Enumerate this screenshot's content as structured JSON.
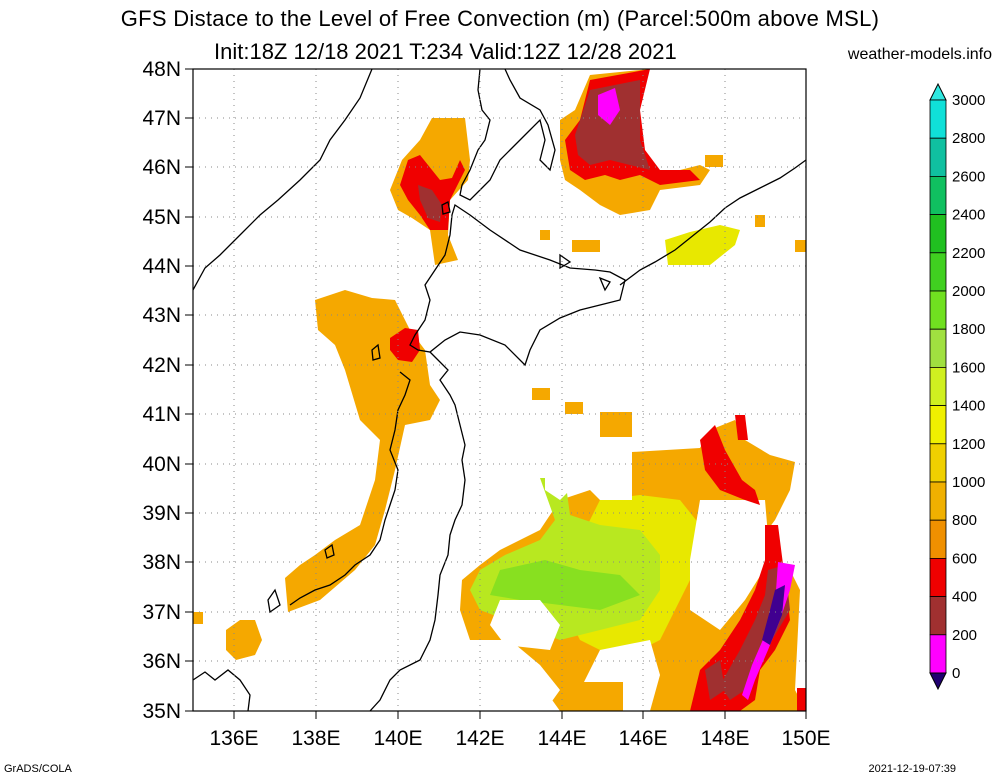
{
  "title": {
    "line1": "GFS Distace to the Level of Free Convection (m) (Parcel:500m above MSL)",
    "line2": "Init:18Z 12/18 2021 T:234 Valid:12Z 12/28 2021"
  },
  "site": "weather-models.info",
  "footer": {
    "left": "GrADS/COLA",
    "right": "2021-12-19-07:39"
  },
  "map": {
    "lat_labels": [
      "48N",
      "47N",
      "46N",
      "45N",
      "44N",
      "43N",
      "42N",
      "41N",
      "40N",
      "39N",
      "38N",
      "37N",
      "36N",
      "35N"
    ],
    "lon_labels": [
      "136E",
      "138E",
      "140E",
      "142E",
      "144E",
      "146E",
      "148E",
      "150E"
    ]
  },
  "colorbar": {
    "labels": [
      "3000",
      "2800",
      "2600",
      "2400",
      "2200",
      "2000",
      "1800",
      "1600",
      "1400",
      "1200",
      "1000",
      "800",
      "600",
      "400",
      "200",
      "0"
    ],
    "colors": [
      "#10e0d8",
      "#10c0a0",
      "#10c060",
      "#20c020",
      "#40d020",
      "#70e020",
      "#a0e040",
      "#d0f020",
      "#f0f000",
      "#f0d000",
      "#f0b000",
      "#f09000",
      "#f00000",
      "#a03030",
      "#ff00ff",
      "#400090"
    ],
    "top_color": "#30e8e0",
    "bottom_color": "#200070"
  },
  "field_colors": {
    "orange": "#f5a800",
    "orange_light": "#f7c020",
    "yellow": "#e8e800",
    "yellowgreen": "#b8e820",
    "green": "#88e020",
    "red": "#f00000",
    "brown": "#a03030",
    "magenta": "#ff00ff",
    "purple": "#400090"
  }
}
